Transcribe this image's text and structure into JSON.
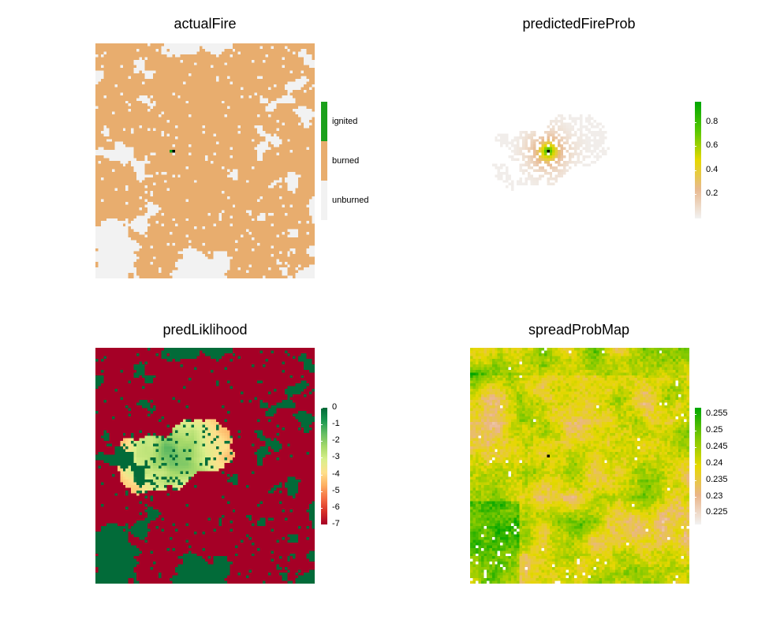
{
  "chart_data": [
    {
      "type": "heatmap",
      "title": "actualFire",
      "legend": {
        "kind": "categorical",
        "placement": "right",
        "entries": [
          {
            "label": "ignited",
            "color": "#1aa01a"
          },
          {
            "label": "burned",
            "color": "#e8ad6e"
          },
          {
            "label": "unburned",
            "color": "#f2f2f2"
          }
        ]
      },
      "description": ""
    },
    {
      "type": "heatmap",
      "title": "predictedFireProb",
      "legend": {
        "kind": "continuous",
        "placement": "right",
        "ticks": [
          "0.8",
          "0.6",
          "0.4",
          "0.2"
        ],
        "tick_values": [
          0.8,
          0.6,
          0.4,
          0.2
        ],
        "range": [
          0.0,
          0.97
        ],
        "colors": [
          "#f2f2f2",
          "#e8b98f",
          "#e6d800",
          "#58c800",
          "#00a600"
        ]
      }
    },
    {
      "type": "heatmap",
      "title": "predLiklihood",
      "legend": {
        "kind": "continuous",
        "placement": "right",
        "ticks": [
          "0",
          "-1",
          "-2",
          "-3",
          "-4",
          "-5",
          "-6",
          "-7"
        ],
        "tick_values": [
          0,
          -1,
          -2,
          -3,
          -4,
          -5,
          -6,
          -7
        ],
        "range": [
          -7,
          0
        ],
        "colors": [
          "#a50026",
          "#d73027",
          "#f46d43",
          "#fdae61",
          "#fee08b",
          "#d9ef8b",
          "#a6d96a",
          "#66bd63",
          "#1a9850",
          "#006837"
        ]
      }
    },
    {
      "type": "heatmap",
      "title": "spreadProbMap",
      "legend": {
        "kind": "continuous",
        "placement": "right",
        "ticks": [
          "0.255",
          "0.25",
          "0.245",
          "0.24",
          "0.235",
          "0.23",
          "0.225"
        ],
        "tick_values": [
          0.255,
          0.25,
          0.245,
          0.24,
          0.235,
          0.23,
          0.225
        ],
        "range": [
          0.2215,
          0.257
        ],
        "colors": [
          "#f2f2f2",
          "#eab58a",
          "#e6d800",
          "#7cc800",
          "#00a600"
        ]
      }
    }
  ]
}
